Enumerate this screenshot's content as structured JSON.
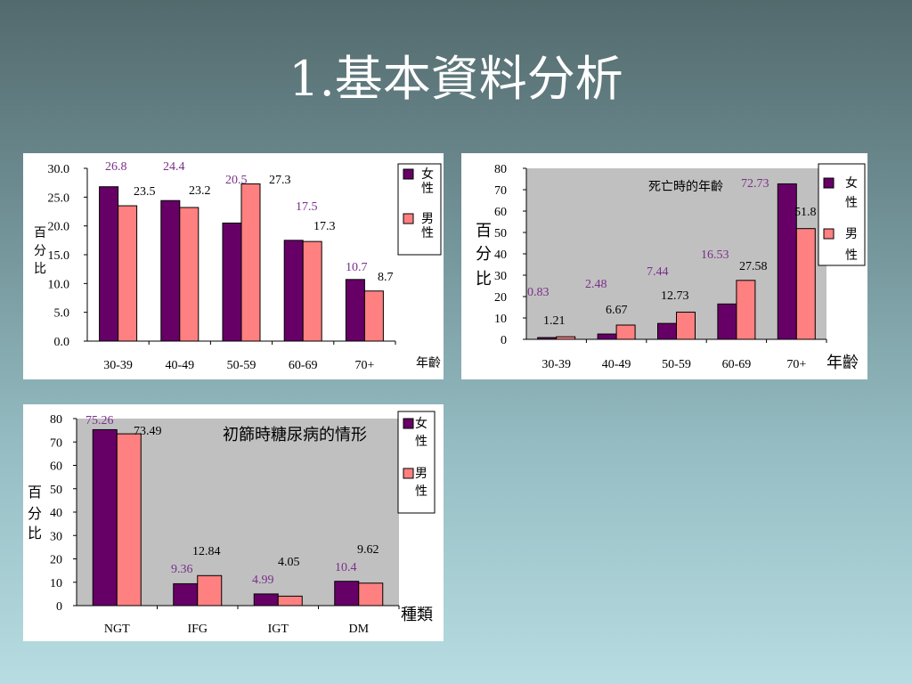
{
  "title": "1.基本資料分析",
  "colors": {
    "female": "#660066",
    "male": "#ff8080",
    "plot_bg": "#c0c0c0",
    "female_label": "#7a2f8a"
  },
  "chart_data": [
    {
      "type": "bar",
      "title": "",
      "categories": [
        "30-39",
        "40-49",
        "50-59",
        "60-69",
        "70+"
      ],
      "series": [
        {
          "name": "女性",
          "values": [
            26.8,
            24.4,
            20.5,
            17.5,
            10.7
          ]
        },
        {
          "name": "男性",
          "values": [
            23.5,
            23.2,
            27.3,
            17.3,
            8.7
          ]
        }
      ],
      "value_labels": [
        [
          "26.8",
          "24.4",
          "20.5",
          "17.5",
          "10.7"
        ],
        [
          "23.5",
          "23.2",
          "27.3",
          "17.3",
          "8.7"
        ]
      ],
      "yticks": [
        "30.0",
        "25.0",
        "20.0",
        "15.0",
        "10.0",
        "5.0",
        "0.0"
      ],
      "ylim": [
        0,
        30
      ],
      "ylabel": [
        "百",
        "分",
        "比"
      ],
      "xlabel": "年齡",
      "legend": {
        "position": "right",
        "items": [
          [
            "女",
            "性"
          ],
          [
            "男",
            "性"
          ]
        ]
      }
    },
    {
      "type": "bar",
      "title": "死亡時的年齡",
      "categories": [
        "30-39",
        "40-49",
        "50-59",
        "60-69",
        "70+"
      ],
      "series": [
        {
          "name": "女性",
          "values": [
            0.83,
            2.48,
            7.44,
            16.53,
            72.73
          ]
        },
        {
          "name": "男性",
          "values": [
            1.21,
            6.67,
            12.73,
            27.58,
            51.8
          ]
        }
      ],
      "value_labels": [
        [
          "0.83",
          "2.48",
          "7.44",
          "16.53",
          "72.73"
        ],
        [
          "1.21",
          "6.67",
          "12.73",
          "27.58",
          "51.8"
        ]
      ],
      "yticks": [
        "80",
        "70",
        "60",
        "50",
        "40",
        "30",
        "20",
        "10",
        "0"
      ],
      "ylim": [
        0,
        80
      ],
      "ylabel": [
        "百",
        "分",
        "比"
      ],
      "xlabel": "年齡",
      "legend": {
        "position": "right",
        "items": [
          [
            "女",
            "性"
          ],
          [
            "男",
            "性"
          ]
        ]
      }
    },
    {
      "type": "bar",
      "title": "初篩時糖尿病的情形",
      "categories": [
        "NGT",
        "IFG",
        "IGT",
        "DM"
      ],
      "series": [
        {
          "name": "女性",
          "values": [
            75.26,
            9.36,
            4.99,
            10.4
          ]
        },
        {
          "name": "男性",
          "values": [
            73.49,
            12.84,
            4.05,
            9.62
          ]
        }
      ],
      "value_labels": [
        [
          "75.26",
          "9.36",
          "4.99",
          "10.4"
        ],
        [
          "73.49",
          "12.84",
          "4.05",
          "9.62"
        ]
      ],
      "yticks": [
        "80",
        "70",
        "60",
        "50",
        "40",
        "30",
        "20",
        "10",
        "0"
      ],
      "ylim": [
        0,
        80
      ],
      "ylabel": [
        "百",
        "分",
        "比"
      ],
      "xlabel": "種類",
      "legend": {
        "position": "right",
        "items": [
          [
            "女",
            "性"
          ],
          [
            "男",
            "性"
          ]
        ]
      }
    }
  ]
}
